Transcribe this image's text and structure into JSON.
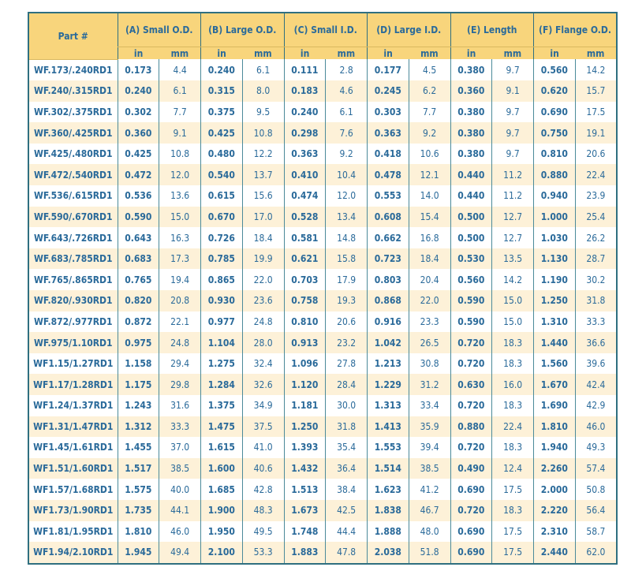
{
  "table": {
    "headers": [
      "Part #",
      "(A) Small O.D.",
      "(B) Large O.D.",
      "(C) Small I.D.",
      "(D) Large I.D.",
      "(E) Length",
      "(F) Flange O.D."
    ],
    "unit_in": "in",
    "unit_mm": "mm",
    "colors": {
      "header_bg": "#f8d57c",
      "text": "#2a6a9a",
      "border": "#2f6f80",
      "alt_row": "#fdf1d8"
    },
    "rows": [
      [
        "WF.173/.240RD1",
        "0.173",
        "4.4",
        "0.240",
        "6.1",
        "0.111",
        "2.8",
        "0.177",
        "4.5",
        "0.380",
        "9.7",
        "0.560",
        "14.2"
      ],
      [
        "WF.240/.315RD1",
        "0.240",
        "6.1",
        "0.315",
        "8.0",
        "0.183",
        "4.6",
        "0.245",
        "6.2",
        "0.360",
        "9.1",
        "0.620",
        "15.7"
      ],
      [
        "WF.302/.375RD1",
        "0.302",
        "7.7",
        "0.375",
        "9.5",
        "0.240",
        "6.1",
        "0.303",
        "7.7",
        "0.380",
        "9.7",
        "0.690",
        "17.5"
      ],
      [
        "WF.360/.425RD1",
        "0.360",
        "9.1",
        "0.425",
        "10.8",
        "0.298",
        "7.6",
        "0.363",
        "9.2",
        "0.380",
        "9.7",
        "0.750",
        "19.1"
      ],
      [
        "WF.425/.480RD1",
        "0.425",
        "10.8",
        "0.480",
        "12.2",
        "0.363",
        "9.2",
        "0.418",
        "10.6",
        "0.380",
        "9.7",
        "0.810",
        "20.6"
      ],
      [
        "WF.472/.540RD1",
        "0.472",
        "12.0",
        "0.540",
        "13.7",
        "0.410",
        "10.4",
        "0.478",
        "12.1",
        "0.440",
        "11.2",
        "0.880",
        "22.4"
      ],
      [
        "WF.536/.615RD1",
        "0.536",
        "13.6",
        "0.615",
        "15.6",
        "0.474",
        "12.0",
        "0.553",
        "14.0",
        "0.440",
        "11.2",
        "0.940",
        "23.9"
      ],
      [
        "WF.590/.670RD1",
        "0.590",
        "15.0",
        "0.670",
        "17.0",
        "0.528",
        "13.4",
        "0.608",
        "15.4",
        "0.500",
        "12.7",
        "1.000",
        "25.4"
      ],
      [
        "WF.643/.726RD1",
        "0.643",
        "16.3",
        "0.726",
        "18.4",
        "0.581",
        "14.8",
        "0.662",
        "16.8",
        "0.500",
        "12.7",
        "1.030",
        "26.2"
      ],
      [
        "WF.683/.785RD1",
        "0.683",
        "17.3",
        "0.785",
        "19.9",
        "0.621",
        "15.8",
        "0.723",
        "18.4",
        "0.530",
        "13.5",
        "1.130",
        "28.7"
      ],
      [
        "WF.765/.865RD1",
        "0.765",
        "19.4",
        "0.865",
        "22.0",
        "0.703",
        "17.9",
        "0.803",
        "20.4",
        "0.560",
        "14.2",
        "1.190",
        "30.2"
      ],
      [
        "WF.820/.930RD1",
        "0.820",
        "20.8",
        "0.930",
        "23.6",
        "0.758",
        "19.3",
        "0.868",
        "22.0",
        "0.590",
        "15.0",
        "1.250",
        "31.8"
      ],
      [
        "WF.872/.977RD1",
        "0.872",
        "22.1",
        "0.977",
        "24.8",
        "0.810",
        "20.6",
        "0.916",
        "23.3",
        "0.590",
        "15.0",
        "1.310",
        "33.3"
      ],
      [
        "WF.975/1.10RD1",
        "0.975",
        "24.8",
        "1.104",
        "28.0",
        "0.913",
        "23.2",
        "1.042",
        "26.5",
        "0.720",
        "18.3",
        "1.440",
        "36.6"
      ],
      [
        "WF1.15/1.27RD1",
        "1.158",
        "29.4",
        "1.275",
        "32.4",
        "1.096",
        "27.8",
        "1.213",
        "30.8",
        "0.720",
        "18.3",
        "1.560",
        "39.6"
      ],
      [
        "WF1.17/1.28RD1",
        "1.175",
        "29.8",
        "1.284",
        "32.6",
        "1.120",
        "28.4",
        "1.229",
        "31.2",
        "0.630",
        "16.0",
        "1.670",
        "42.4"
      ],
      [
        "WF1.24/1.37RD1",
        "1.243",
        "31.6",
        "1.375",
        "34.9",
        "1.181",
        "30.0",
        "1.313",
        "33.4",
        "0.720",
        "18.3",
        "1.690",
        "42.9"
      ],
      [
        "WF1.31/1.47RD1",
        "1.312",
        "33.3",
        "1.475",
        "37.5",
        "1.250",
        "31.8",
        "1.413",
        "35.9",
        "0.880",
        "22.4",
        "1.810",
        "46.0"
      ],
      [
        "WF1.45/1.61RD1",
        "1.455",
        "37.0",
        "1.615",
        "41.0",
        "1.393",
        "35.4",
        "1.553",
        "39.4",
        "0.720",
        "18.3",
        "1.940",
        "49.3"
      ],
      [
        "WF1.51/1.60RD1",
        "1.517",
        "38.5",
        "1.600",
        "40.6",
        "1.432",
        "36.4",
        "1.514",
        "38.5",
        "0.490",
        "12.4",
        "2.260",
        "57.4"
      ],
      [
        "WF1.57/1.68RD1",
        "1.575",
        "40.0",
        "1.685",
        "42.8",
        "1.513",
        "38.4",
        "1.623",
        "41.2",
        "0.690",
        "17.5",
        "2.000",
        "50.8"
      ],
      [
        "WF1.73/1.90RD1",
        "1.735",
        "44.1",
        "1.900",
        "48.3",
        "1.673",
        "42.5",
        "1.838",
        "46.7",
        "0.720",
        "18.3",
        "2.220",
        "56.4"
      ],
      [
        "WF1.81/1.95RD1",
        "1.810",
        "46.0",
        "1.950",
        "49.5",
        "1.748",
        "44.4",
        "1.888",
        "48.0",
        "0.690",
        "17.5",
        "2.310",
        "58.7"
      ],
      [
        "WF1.94/2.10RD1",
        "1.945",
        "49.4",
        "2.100",
        "53.3",
        "1.883",
        "47.8",
        "2.038",
        "51.8",
        "0.690",
        "17.5",
        "2.440",
        "62.0"
      ]
    ]
  }
}
